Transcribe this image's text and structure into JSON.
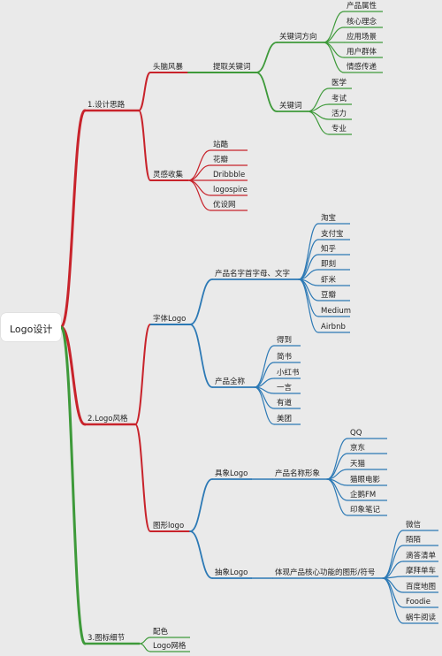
{
  "root": "Logo设计",
  "colors": {
    "red": "#c8232b",
    "green": "#3e9a3a",
    "blue": "#2c79b5",
    "background": "#eaeaea"
  },
  "branches": {
    "b1": {
      "label": "1.设计思路",
      "storm": {
        "label": "头脑风暴",
        "extract": {
          "label": "提取关键词",
          "direction": {
            "label": "关键词方向",
            "items": [
              "产品属性",
              "核心理念",
              "应用场景",
              "用户群体",
              "情感传递"
            ]
          },
          "keywords": {
            "label": "关键词",
            "items": [
              "医学",
              "考试",
              "活力",
              "专业"
            ]
          }
        }
      },
      "inspiration": {
        "label": "灵感收集",
        "items": [
          "站酷",
          "花瓣",
          "Dribbble",
          "logospire",
          "优设网"
        ]
      }
    },
    "b2": {
      "label": "2.Logo风格",
      "font": {
        "label": "字体Logo",
        "initials": {
          "label": "产品名字首字母、文字",
          "items": [
            "淘宝",
            "支付宝",
            "知乎",
            "即刻",
            "虾米",
            "豆瓣",
            "Medium",
            "Airbnb"
          ]
        },
        "fullname": {
          "label": "产品全称",
          "items": [
            "得到",
            "简书",
            "小红书",
            "一言",
            "有道",
            "美团"
          ]
        }
      },
      "graphic": {
        "label": "图形logo",
        "concrete": {
          "label": "具象Logo",
          "shape": {
            "label": "产品名称形象",
            "items": [
              "QQ",
              "京东",
              "天猫",
              "猫眼电影",
              "企鹅FM",
              "印象笔记"
            ]
          }
        },
        "abstract": {
          "label": "抽象Logo",
          "symbol": {
            "label": "体现产品核心功能的图形/符号",
            "items": [
              "微信",
              "陌陌",
              "滴答清单",
              "摩拜单车",
              "百度地图",
              "Foodie",
              "蜗牛阅读"
            ]
          }
        }
      }
    },
    "b3": {
      "label": "3.图标细节",
      "items": [
        "配色",
        "Logo网格"
      ]
    }
  }
}
